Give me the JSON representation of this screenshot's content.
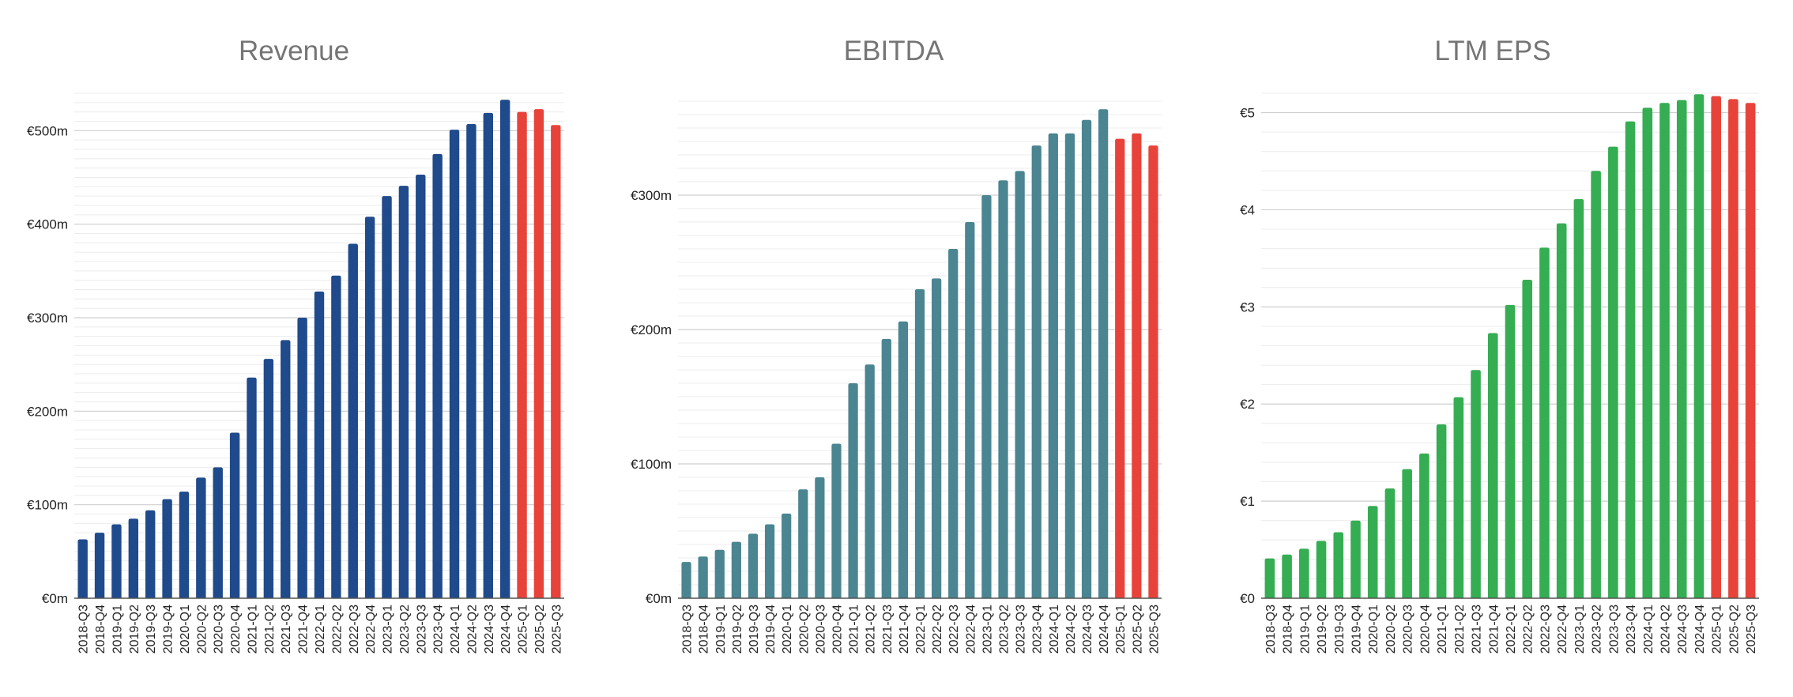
{
  "colors": {
    "forecast": "#e8433a",
    "grid_major": "#cfcfcf",
    "grid_minor": "#ececec",
    "axis": "#555555",
    "title": "#757575"
  },
  "chart_data": [
    {
      "type": "bar",
      "title": "Revenue",
      "color": "#1f4a8c",
      "forecast_from_index": 26,
      "categories": [
        "2018-Q3",
        "2018-Q4",
        "2019-Q1",
        "2019-Q2",
        "2019-Q3",
        "2019-Q4",
        "2020-Q1",
        "2020-Q2",
        "2020-Q3",
        "2020-Q4",
        "2021-Q1",
        "2021-Q2",
        "2021-Q3",
        "2021-Q4",
        "2022-Q1",
        "2022-Q2",
        "2022-Q3",
        "2022-Q4",
        "2023-Q1",
        "2023-Q2",
        "2023-Q3",
        "2023-Q4",
        "2024-Q1",
        "2024-Q2",
        "2024-Q3",
        "2024-Q4",
        "2025-Q1",
        "2025-Q2",
        "2025-Q3"
      ],
      "values": [
        63,
        70,
        79,
        85,
        94,
        106,
        114,
        129,
        140,
        177,
        236,
        256,
        276,
        300,
        328,
        345,
        379,
        408,
        430,
        441,
        453,
        475,
        501,
        507,
        519,
        533,
        520,
        523,
        506
      ],
      "ylim": [
        0,
        540
      ],
      "yticks": [
        0,
        100,
        200,
        300,
        400,
        500
      ],
      "ytick_labels": [
        "€0m",
        "€100m",
        "€200m",
        "€300m",
        "€400m",
        "€500m"
      ],
      "minor_step": 10,
      "xlabel": "",
      "ylabel": ""
    },
    {
      "type": "bar",
      "title": "EBITDA",
      "color": "#4a8591",
      "forecast_from_index": 26,
      "categories": [
        "2018-Q3",
        "2018-Q4",
        "2019-Q1",
        "2019-Q2",
        "2019-Q3",
        "2019-Q4",
        "2020-Q1",
        "2020-Q2",
        "2020-Q3",
        "2020-Q4",
        "2021-Q1",
        "2021-Q2",
        "2021-Q3",
        "2021-Q4",
        "2022-Q1",
        "2022-Q2",
        "2022-Q3",
        "2022-Q4",
        "2023-Q1",
        "2023-Q2",
        "2023-Q3",
        "2023-Q4",
        "2024-Q1",
        "2024-Q2",
        "2024-Q3",
        "2024-Q4",
        "2025-Q1",
        "2025-Q2",
        "2025-Q3"
      ],
      "values": [
        27,
        31,
        36,
        42,
        48,
        55,
        63,
        81,
        90,
        115,
        160,
        174,
        193,
        206,
        230,
        238,
        260,
        280,
        300,
        311,
        318,
        337,
        346,
        346,
        356,
        364,
        342,
        346,
        337
      ],
      "ylim": [
        0,
        370
      ],
      "yticks": [
        0,
        100,
        200,
        300
      ],
      "ytick_labels": [
        "€0m",
        "€100m",
        "€200m",
        "€300m"
      ],
      "minor_step": 10,
      "xlabel": "",
      "ylabel": ""
    },
    {
      "type": "bar",
      "title": "LTM EPS",
      "color": "#35ad52",
      "forecast_from_index": 26,
      "categories": [
        "2018-Q3",
        "2018-Q4",
        "2019-Q1",
        "2019-Q2",
        "2019-Q3",
        "2019-Q4",
        "2020-Q1",
        "2020-Q2",
        "2020-Q3",
        "2020-Q4",
        "2021-Q1",
        "2021-Q2",
        "2021-Q3",
        "2021-Q4",
        "2022-Q1",
        "2022-Q2",
        "2022-Q3",
        "2022-Q4",
        "2023-Q1",
        "2023-Q2",
        "2023-Q3",
        "2023-Q4",
        "2024-Q1",
        "2024-Q2",
        "2024-Q3",
        "2024-Q4",
        "2025-Q1",
        "2025-Q2",
        "2025-Q3"
      ],
      "values": [
        0.41,
        0.45,
        0.51,
        0.59,
        0.68,
        0.8,
        0.95,
        1.13,
        1.33,
        1.49,
        1.79,
        2.07,
        2.35,
        2.73,
        3.02,
        3.28,
        3.61,
        3.86,
        4.11,
        4.4,
        4.65,
        4.91,
        5.05,
        5.1,
        5.13,
        5.19,
        5.17,
        5.14,
        5.1
      ],
      "ylim": [
        0,
        5.2
      ],
      "yticks": [
        0,
        1,
        2,
        3,
        4,
        5
      ],
      "ytick_labels": [
        "€0",
        "€1",
        "€2",
        "€3",
        "€4",
        "€5"
      ],
      "minor_step": 0.2,
      "xlabel": "",
      "ylabel": ""
    }
  ]
}
